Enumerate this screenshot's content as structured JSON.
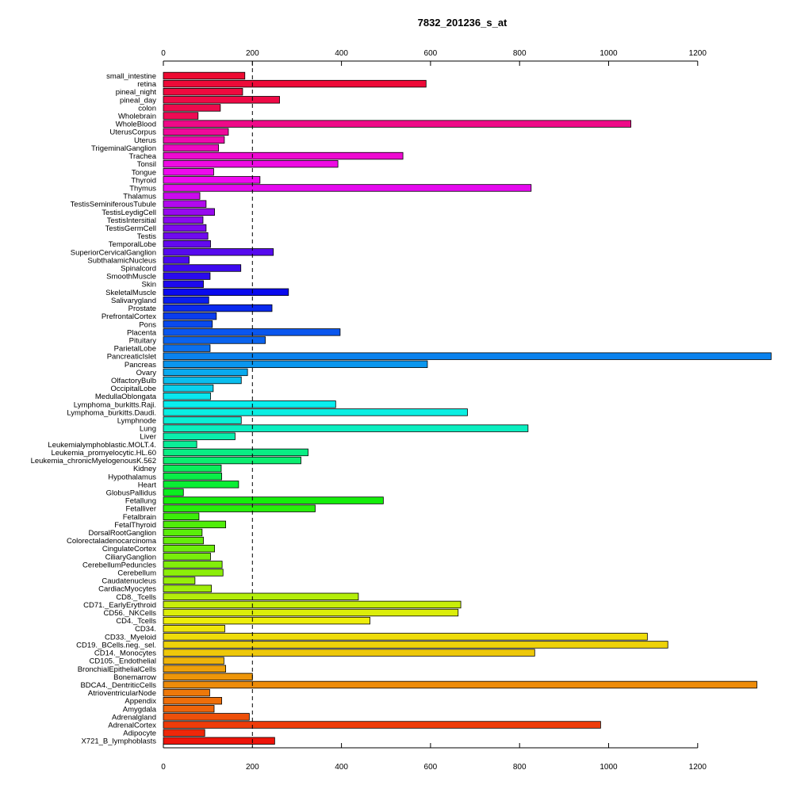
{
  "chart_data": {
    "type": "bar",
    "orientation": "horizontal",
    "title": "7832_201236_s_at",
    "xlabel": "",
    "ylabel": "",
    "xlim": [
      0,
      1365
    ],
    "x_ticks": [
      0,
      200,
      400,
      600,
      800,
      1000,
      1200
    ],
    "x_tick_labels": [
      "0",
      "200",
      "400",
      "600",
      "800",
      "1000",
      "1200"
    ],
    "reference_line": 200,
    "grid": false,
    "categories": [
      "small_intestine",
      "retina",
      "pineal_night",
      "pineal_day",
      "colon",
      "Wholebrain",
      "WholeBlood",
      "UterusCorpus",
      "Uterus",
      "TrigeminalGanglion",
      "Trachea",
      "Tonsil",
      "Tongue",
      "Thyroid",
      "Thymus",
      "Thalamus",
      "TestisSeminiferousTubule",
      "TestisLeydigCell",
      "TestisIntersitial",
      "TestisGermCell",
      "Testis",
      "TemporalLobe",
      "SuperiorCervicalGanglion",
      "SubthalamicNucleus",
      "Spinalcord",
      "SmoothMuscle",
      "Skin",
      "SkeletalMuscle",
      "Salivarygland",
      "Prostate",
      "PrefrontalCortex",
      "Pons",
      "Placenta",
      "Pituitary",
      "ParietalLobe",
      "PancreaticIslet",
      "Pancreas",
      "Ovary",
      "OlfactoryBulb",
      "OccipitalLobe",
      "MedullaOblongata",
      "Lymphoma_burkitts.Raji.",
      "Lymphoma_burkitts.Daudi.",
      "Lymphnode",
      "Lung",
      "Liver",
      "Leukemialymphoblastic.MOLT.4.",
      "Leukemia_promyelocytic.HL.60",
      "Leukemia_chronicMyelogenousK.562",
      "Kidney",
      "Hypothalamus",
      "Heart",
      "GlobusPallidus",
      "Fetallung",
      "Fetalliver",
      "Fetalbrain",
      "FetalThyroid",
      "DorsalRootGanglion",
      "Colorectaladenocarcinoma",
      "CingulateCortex",
      "CiliaryGanglion",
      "CerebellumPeduncles",
      "Cerebellum",
      "Caudatenucleus",
      "CardiacMyocytes",
      "CD8._Tcells",
      "CD71._EarlyErythroid",
      "CD56._NKCells",
      "CD4._Tcells",
      "CD34.",
      "CD33._Myeloid",
      "CD19._BCells.neg._sel.",
      "CD14._Monocytes",
      "CD105._Endothelial",
      "BronchialEpithelialCells",
      "Bonemarrow",
      "BDCA4._DentriticCells",
      "AtrioventricularNode",
      "Appendix",
      "Amygdala",
      "Adrenalgland",
      "AdrenalCortex",
      "Adipocyte",
      "X721_B_lymphoblasts"
    ],
    "values": [
      183,
      590,
      178,
      261,
      128,
      78,
      1050,
      146,
      137,
      124,
      538,
      392,
      113,
      217,
      826,
      82,
      96,
      115,
      89,
      96,
      100,
      106,
      247,
      58,
      174,
      105,
      90,
      281,
      102,
      244,
      119,
      110,
      397,
      229,
      105,
      1365,
      593,
      189,
      175,
      112,
      106,
      387,
      683,
      175,
      819,
      161,
      75,
      325,
      309,
      130,
      131,
      169,
      45,
      494,
      341,
      80,
      140,
      87,
      90,
      115,
      106,
      132,
      134,
      71,
      108,
      438,
      668,
      662,
      464,
      138,
      1087,
      1133,
      834,
      136,
      140,
      200,
      1333,
      104,
      131,
      114,
      193,
      982,
      93,
      250
    ],
    "colors": [
      "#EE0A32",
      "#EE0A38",
      "#EE0A3F",
      "#EE0A46",
      "#EE0A4D",
      "#EE0A54",
      "#EE0A88",
      "#EE0A9A",
      "#EE0AAD",
      "#EE0ABF",
      "#EE0AD1",
      "#EE0AE3",
      "#EE0AEE",
      "#EE0AEE",
      "#E40AEE",
      "#CA0AEE",
      "#B10AEE",
      "#970AEE",
      "#8A0AEE",
      "#7D0AEE",
      "#700AEE",
      "#630AEE",
      "#560AEE",
      "#4A0AEE",
      "#3D0AEE",
      "#2A0AEE",
      "#1E0AEE",
      "#0A0AEE",
      "#0A1EEE",
      "#0A2AEE",
      "#0A3DEE",
      "#0A4AEE",
      "#0A56EE",
      "#0A63EE",
      "#0A70EE",
      "#0A82EE",
      "#0A96EE",
      "#0AAAEE",
      "#0ABEEE",
      "#0AD2EE",
      "#0AE6EE",
      "#0AEEEE",
      "#0AEEE2",
      "#0AEED4",
      "#0AEEC0",
      "#0AEEAC",
      "#0AEE98",
      "#0AEE84",
      "#0AEE70",
      "#0AEE5C",
      "#0AEE48",
      "#0AEE34",
      "#0AEE20",
      "#14EE0A",
      "#28EE0A",
      "#3CEE0A",
      "#50EE0A",
      "#5AEE0A",
      "#64EE0A",
      "#6EEE0A",
      "#78EE0A",
      "#82EE0A",
      "#8CEE0A",
      "#96EE0A",
      "#A0EE0A",
      "#B4EE0A",
      "#C8EE0A",
      "#DCEE0A",
      "#EEEE0A",
      "#EEE60A",
      "#EEDC0A",
      "#EED20A",
      "#EEC80A",
      "#EEB40A",
      "#EEA00A",
      "#EE960A",
      "#EE8C0A",
      "#EE780A",
      "#EE6E0A",
      "#EE640A",
      "#EE500A",
      "#EE3C0A",
      "#EE280A",
      "#EE140A"
    ]
  }
}
